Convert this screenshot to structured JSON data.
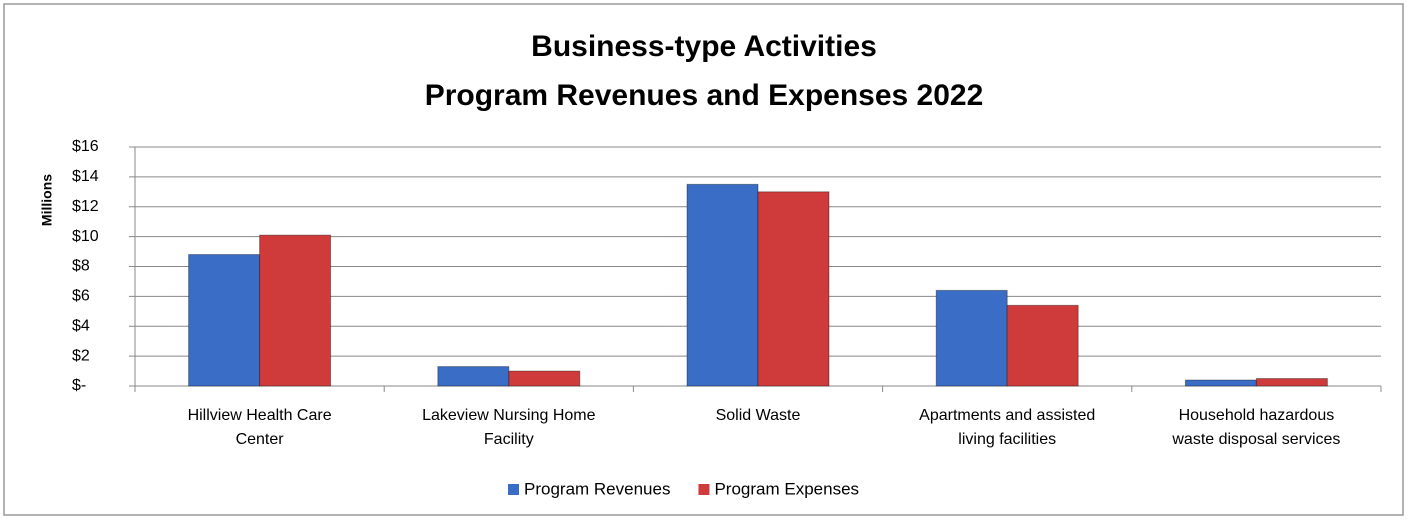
{
  "chart_data": {
    "type": "bar",
    "title": [
      "Business-type Activities",
      "Program Revenues and Expenses 2022"
    ],
    "y_label": "Millions",
    "categories": [
      "Hillview Health Care Center",
      "Lakeview Nursing Home Facility",
      "Solid Waste",
      "Apartments and assisted living facilities",
      "Household hazardous waste disposal services"
    ],
    "series": [
      {
        "name": "Program Revenues",
        "color": "#3a6ec6",
        "values": [
          8.8,
          1.3,
          13.5,
          6.4,
          0.4
        ]
      },
      {
        "name": "Program Expenses",
        "color": "#cf3a3a",
        "values": [
          10.1,
          1.0,
          13.0,
          5.4,
          0.5
        ]
      }
    ],
    "ylim": [
      0,
      16
    ],
    "yticks": [
      {
        "value": 0,
        "label": "$-"
      },
      {
        "value": 2,
        "label": "$2"
      },
      {
        "value": 4,
        "label": "$4"
      },
      {
        "value": 6,
        "label": "$6"
      },
      {
        "value": 8,
        "label": "$8"
      },
      {
        "value": 10,
        "label": "$10"
      },
      {
        "value": 12,
        "label": "$12"
      },
      {
        "value": 14,
        "label": "$14"
      },
      {
        "value": 16,
        "label": "$16"
      }
    ],
    "grid": true,
    "legend": "bottom"
  }
}
